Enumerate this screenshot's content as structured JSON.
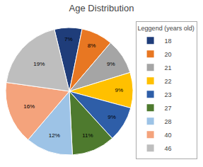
{
  "chart_data": {
    "type": "pie",
    "title": "Age Distribution",
    "legend_title": "Leggend (years old)",
    "categories": [
      "18",
      "20",
      "21",
      "22",
      "23",
      "27",
      "28",
      "40",
      "46"
    ],
    "values": [
      7,
      8,
      9,
      9,
      9,
      11,
      12,
      16,
      19
    ],
    "value_labels": [
      "7%",
      "8%",
      "9%",
      "9%",
      "9%",
      "11%",
      "12%",
      "16%",
      "19%"
    ],
    "colors": [
      "#1F3D7A",
      "#E87722",
      "#A5A5A5",
      "#FFC000",
      "#2E5EA8",
      "#4E7A2E",
      "#9DC3E6",
      "#F4A37C",
      "#BEBEBE"
    ],
    "data_labels": true,
    "legend": "upper right"
  }
}
